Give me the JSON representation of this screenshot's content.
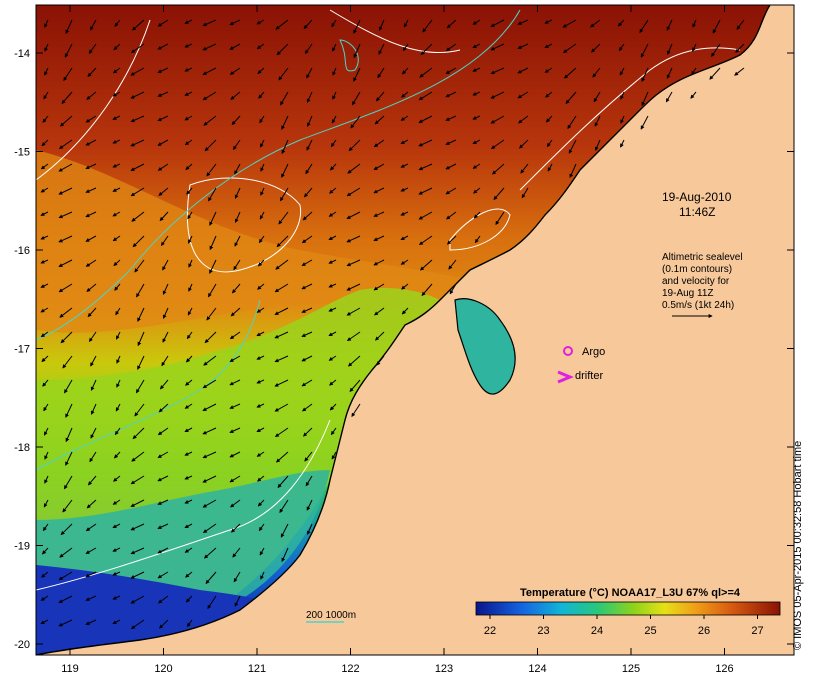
{
  "map": {
    "date": "19-Aug-2010",
    "time": "11:46Z",
    "altimetry_note": [
      "Altimetric sealevel",
      "(0.1m contours)",
      "and velocity for",
      "19-Aug 11Z",
      "0.5m/s (1kt 24h)"
    ],
    "legend": {
      "argo_label": "Argo",
      "drifter_label": "drifter",
      "isobath_label": "200  1000m"
    },
    "colorbar": {
      "title": "Temperature (°C) NOAA17_L3U 67% ql>=4",
      "ticks": [
        "22",
        "23",
        "24",
        "25",
        "26",
        "27"
      ]
    },
    "x_ticks": [
      "119",
      "120",
      "121",
      "122",
      "123",
      "124",
      "125",
      "126"
    ],
    "y_ticks": [
      "-14",
      "-15",
      "-16",
      "-17",
      "-18",
      "-19",
      "-20"
    ],
    "credit": "© IMOS 05-Apr-2015 00:32:58 Hobart time",
    "colors": {
      "land": "#f7c89a",
      "sst_cold": "#0a148c",
      "sst_warm": "#8e1406",
      "contour": "#ffffff",
      "isobath": "#4fd3c4",
      "argo": "#e020e0"
    }
  }
}
